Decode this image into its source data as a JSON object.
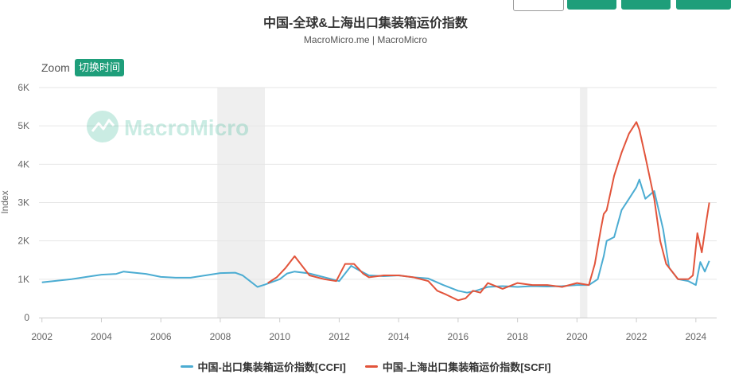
{
  "chart_data": {
    "type": "line",
    "title": "中国-全球&上海出口集装箱运价指数",
    "subtitle": "MacroMicro.me | MacroMicro",
    "ylabel": "Index",
    "xlabel": "",
    "xlim": [
      2001.9,
      2024.7
    ],
    "ylim": [
      0,
      6000
    ],
    "y_ticks": [
      {
        "value": 0,
        "label": "0"
      },
      {
        "value": 1000,
        "label": "1K"
      },
      {
        "value": 2000,
        "label": "2K"
      },
      {
        "value": 3000,
        "label": "3K"
      },
      {
        "value": 4000,
        "label": "4K"
      },
      {
        "value": 5000,
        "label": "5K"
      },
      {
        "value": 6000,
        "label": "6K"
      }
    ],
    "x_ticks": [
      {
        "value": 2002,
        "label": "2002"
      },
      {
        "value": 2004,
        "label": "2004"
      },
      {
        "value": 2006,
        "label": "2006"
      },
      {
        "value": 2008,
        "label": "2008"
      },
      {
        "value": 2010,
        "label": "2010"
      },
      {
        "value": 2012,
        "label": "2012"
      },
      {
        "value": 2014,
        "label": "2014"
      },
      {
        "value": 2016,
        "label": "2016"
      },
      {
        "value": 2018,
        "label": "2018"
      },
      {
        "value": 2020,
        "label": "2020"
      },
      {
        "value": 2022,
        "label": "2022"
      },
      {
        "value": 2024,
        "label": "2024"
      }
    ],
    "grid": true,
    "legend_position": "bottom-center",
    "shaded_periods": [
      {
        "start": 2007.9,
        "end": 2009.5
      },
      {
        "start": 2020.1,
        "end": 2020.35
      }
    ],
    "series": [
      {
        "name": "中国-出口集装箱运价指数[CCFI]",
        "color": "#4bacd2",
        "x": [
          2002.0,
          2002.5,
          2003.0,
          2003.5,
          2004.0,
          2004.5,
          2004.75,
          2005.0,
          2005.5,
          2006.0,
          2006.5,
          2007.0,
          2007.5,
          2008.0,
          2008.5,
          2008.75,
          2009.0,
          2009.25,
          2009.5,
          2010.0,
          2010.25,
          2010.5,
          2011.0,
          2011.5,
          2012.0,
          2012.4,
          2012.75,
          2013.0,
          2013.5,
          2014.0,
          2014.5,
          2015.0,
          2015.5,
          2016.0,
          2016.3,
          2016.6,
          2017.0,
          2017.5,
          2018.0,
          2018.5,
          2019.0,
          2019.5,
          2020.0,
          2020.4,
          2020.7,
          2020.9,
          2021.0,
          2021.25,
          2021.5,
          2021.75,
          2022.0,
          2022.1,
          2022.3,
          2022.6,
          2022.9,
          2023.1,
          2023.4,
          2023.75,
          2024.0,
          2024.15,
          2024.3,
          2024.45
        ],
        "values": [
          920,
          960,
          1000,
          1060,
          1120,
          1140,
          1200,
          1180,
          1140,
          1060,
          1040,
          1040,
          1100,
          1160,
          1170,
          1100,
          950,
          800,
          860,
          1000,
          1150,
          1200,
          1150,
          1050,
          950,
          1350,
          1200,
          1100,
          1080,
          1100,
          1050,
          1020,
          850,
          700,
          650,
          700,
          800,
          820,
          800,
          820,
          810,
          820,
          850,
          850,
          1000,
          1600,
          2000,
          2100,
          2800,
          3100,
          3400,
          3600,
          3100,
          3300,
          2300,
          1300,
          1000,
          950,
          850,
          1450,
          1200,
          1480
        ]
      },
      {
        "name": "中国-上海出口集装箱运价指数[SCFI]",
        "color": "#e2543b",
        "x": [
          2009.6,
          2009.9,
          2010.2,
          2010.5,
          2010.8,
          2011.0,
          2011.5,
          2011.9,
          2012.2,
          2012.5,
          2012.8,
          2013.0,
          2013.5,
          2014.0,
          2014.5,
          2015.0,
          2015.3,
          2015.6,
          2016.0,
          2016.25,
          2016.5,
          2016.75,
          2017.0,
          2017.5,
          2018.0,
          2018.5,
          2019.0,
          2019.5,
          2020.0,
          2020.4,
          2020.6,
          2020.8,
          2020.9,
          2021.0,
          2021.25,
          2021.5,
          2021.75,
          2022.0,
          2022.1,
          2022.3,
          2022.6,
          2022.8,
          2023.0,
          2023.4,
          2023.75,
          2023.9,
          2024.05,
          2024.2,
          2024.35,
          2024.45
        ],
        "values": [
          900,
          1050,
          1300,
          1600,
          1300,
          1100,
          1000,
          950,
          1400,
          1400,
          1150,
          1050,
          1100,
          1100,
          1050,
          950,
          700,
          600,
          450,
          500,
          700,
          650,
          900,
          750,
          900,
          850,
          850,
          800,
          900,
          850,
          1400,
          2300,
          2700,
          2800,
          3700,
          4300,
          4800,
          5100,
          4900,
          4200,
          3100,
          2000,
          1400,
          1000,
          1000,
          1100,
          2200,
          1700,
          2500,
          3000
        ]
      }
    ]
  },
  "toolbar": {
    "zoom_label": "Zoom",
    "zoom_button": "切换时间"
  },
  "watermark": "MacroMicro",
  "colors": {
    "accent": "#1e9e7a",
    "ccfi": "#4bacd2",
    "scfi": "#e2543b"
  }
}
